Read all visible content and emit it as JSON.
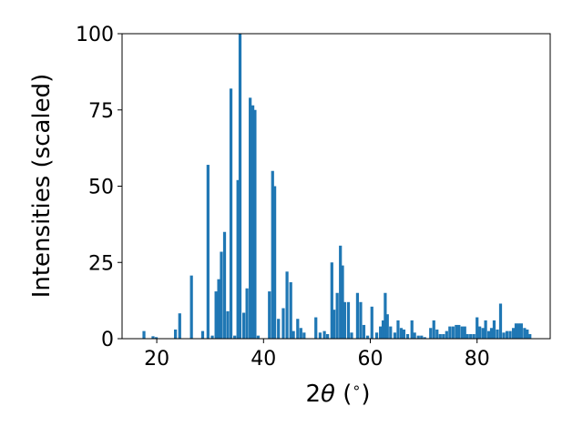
{
  "chart_data": {
    "type": "bar",
    "title": "",
    "xlabel_parts": [
      "2",
      "θ",
      " (",
      "∘",
      ")"
    ],
    "ylabel": "Intensities (scaled)",
    "xlim": [
      13.5,
      93.7
    ],
    "ylim": [
      0,
      100
    ],
    "xticks": [
      20,
      40,
      60,
      80
    ],
    "yticks": [
      0,
      25,
      50,
      75,
      100
    ],
    "bar_color": "#1f77b4",
    "bar_width": 0.55,
    "grid": false,
    "points": [
      {
        "x": 17.6,
        "y": 2.5
      },
      {
        "x": 19.3,
        "y": 0.8
      },
      {
        "x": 19.9,
        "y": 0.5
      },
      {
        "x": 23.5,
        "y": 3.0
      },
      {
        "x": 24.3,
        "y": 8.3
      },
      {
        "x": 26.5,
        "y": 20.7
      },
      {
        "x": 28.6,
        "y": 2.5
      },
      {
        "x": 29.6,
        "y": 57.0
      },
      {
        "x": 30.4,
        "y": 1.0
      },
      {
        "x": 31.1,
        "y": 15.5
      },
      {
        "x": 31.6,
        "y": 19.5
      },
      {
        "x": 32.1,
        "y": 28.5
      },
      {
        "x": 32.7,
        "y": 35.0
      },
      {
        "x": 33.3,
        "y": 9.0
      },
      {
        "x": 33.9,
        "y": 82.0
      },
      {
        "x": 34.6,
        "y": 1.0
      },
      {
        "x": 35.2,
        "y": 52.0
      },
      {
        "x": 35.6,
        "y": 100.0
      },
      {
        "x": 36.3,
        "y": 8.5
      },
      {
        "x": 36.9,
        "y": 16.5
      },
      {
        "x": 37.5,
        "y": 79.0
      },
      {
        "x": 38.0,
        "y": 76.5
      },
      {
        "x": 38.4,
        "y": 75.0
      },
      {
        "x": 39.0,
        "y": 1.0
      },
      {
        "x": 41.1,
        "y": 15.5
      },
      {
        "x": 41.7,
        "y": 55.0
      },
      {
        "x": 42.1,
        "y": 50.0
      },
      {
        "x": 42.8,
        "y": 6.5
      },
      {
        "x": 43.7,
        "y": 10.0
      },
      {
        "x": 44.4,
        "y": 22.0
      },
      {
        "x": 45.1,
        "y": 18.5
      },
      {
        "x": 45.6,
        "y": 2.5
      },
      {
        "x": 46.4,
        "y": 6.5
      },
      {
        "x": 47.0,
        "y": 3.5
      },
      {
        "x": 47.6,
        "y": 2.0
      },
      {
        "x": 49.8,
        "y": 7.0
      },
      {
        "x": 50.6,
        "y": 2.0
      },
      {
        "x": 51.4,
        "y": 2.5
      },
      {
        "x": 52.0,
        "y": 1.5
      },
      {
        "x": 52.8,
        "y": 25.0
      },
      {
        "x": 53.2,
        "y": 9.5
      },
      {
        "x": 53.8,
        "y": 15.0
      },
      {
        "x": 54.4,
        "y": 30.5
      },
      {
        "x": 54.8,
        "y": 24.0
      },
      {
        "x": 55.2,
        "y": 12.0
      },
      {
        "x": 55.9,
        "y": 12.0
      },
      {
        "x": 56.5,
        "y": 2.0
      },
      {
        "x": 57.6,
        "y": 15.0
      },
      {
        "x": 58.2,
        "y": 12.0
      },
      {
        "x": 58.8,
        "y": 4.5
      },
      {
        "x": 59.5,
        "y": 1.0
      },
      {
        "x": 60.3,
        "y": 10.5
      },
      {
        "x": 61.2,
        "y": 2.0
      },
      {
        "x": 61.9,
        "y": 4.0
      },
      {
        "x": 62.4,
        "y": 6.0
      },
      {
        "x": 62.8,
        "y": 15.0
      },
      {
        "x": 63.2,
        "y": 8.0
      },
      {
        "x": 63.8,
        "y": 4.0
      },
      {
        "x": 64.6,
        "y": 2.0
      },
      {
        "x": 65.2,
        "y": 6.0
      },
      {
        "x": 65.8,
        "y": 3.5
      },
      {
        "x": 66.3,
        "y": 3.0
      },
      {
        "x": 67.0,
        "y": 1.5
      },
      {
        "x": 67.8,
        "y": 6.0
      },
      {
        "x": 68.3,
        "y": 2.0
      },
      {
        "x": 69.0,
        "y": 1.0
      },
      {
        "x": 69.6,
        "y": 1.0
      },
      {
        "x": 70.2,
        "y": 0.5
      },
      {
        "x": 71.3,
        "y": 3.5
      },
      {
        "x": 71.9,
        "y": 6.0
      },
      {
        "x": 72.5,
        "y": 3.0
      },
      {
        "x": 73.1,
        "y": 1.5
      },
      {
        "x": 73.7,
        "y": 1.5
      },
      {
        "x": 74.3,
        "y": 2.5
      },
      {
        "x": 74.9,
        "y": 4.0
      },
      {
        "x": 75.5,
        "y": 4.0
      },
      {
        "x": 76.1,
        "y": 4.5
      },
      {
        "x": 76.6,
        "y": 4.5
      },
      {
        "x": 77.2,
        "y": 4.0
      },
      {
        "x": 77.7,
        "y": 4.0
      },
      {
        "x": 78.2,
        "y": 1.5
      },
      {
        "x": 78.8,
        "y": 1.5
      },
      {
        "x": 79.4,
        "y": 1.5
      },
      {
        "x": 80.0,
        "y": 7.0
      },
      {
        "x": 80.5,
        "y": 4.0
      },
      {
        "x": 81.1,
        "y": 3.5
      },
      {
        "x": 81.6,
        "y": 6.0
      },
      {
        "x": 82.2,
        "y": 2.5
      },
      {
        "x": 82.7,
        "y": 3.5
      },
      {
        "x": 83.2,
        "y": 6.0
      },
      {
        "x": 83.8,
        "y": 3.0
      },
      {
        "x": 84.4,
        "y": 11.5
      },
      {
        "x": 85.0,
        "y": 2.0
      },
      {
        "x": 85.6,
        "y": 2.5
      },
      {
        "x": 86.2,
        "y": 2.5
      },
      {
        "x": 86.8,
        "y": 3.5
      },
      {
        "x": 87.3,
        "y": 5.0
      },
      {
        "x": 87.8,
        "y": 5.0
      },
      {
        "x": 88.3,
        "y": 5.0
      },
      {
        "x": 88.9,
        "y": 3.5
      },
      {
        "x": 89.4,
        "y": 3.0
      },
      {
        "x": 89.9,
        "y": 1.5
      }
    ]
  }
}
